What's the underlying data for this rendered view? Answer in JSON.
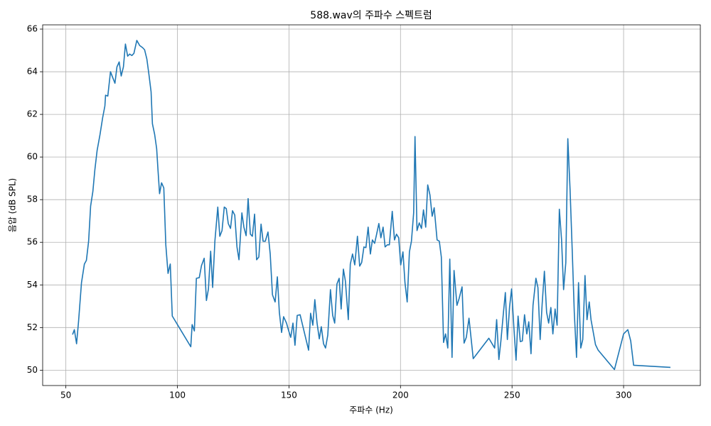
{
  "chart_data": {
    "type": "line",
    "title": "588.wav의 주파수 스펙트럼",
    "xlabel": "주파수 (Hz)",
    "ylabel": "음압 (dB SPL)",
    "color": "#1f77b4",
    "grid": true,
    "xlim": [
      39.6,
      334.4
    ],
    "ylim": [
      49.28,
      66.2
    ],
    "xticks": [
      50,
      100,
      150,
      200,
      250,
      300
    ],
    "yticks": [
      50,
      52,
      54,
      56,
      58,
      60,
      62,
      64,
      66
    ],
    "x": [
      53.0,
      53.8,
      54.8,
      55.7,
      57.0,
      58.3,
      59.2,
      60.2,
      61.1,
      62.1,
      63.0,
      64.0,
      65.3,
      66.5,
      67.5,
      67.8,
      68.8,
      70.0,
      71.0,
      72.0,
      72.9,
      73.9,
      74.8,
      75.8,
      76.7,
      77.7,
      78.6,
      79.6,
      80.5,
      81.8,
      83.1,
      84.4,
      85.3,
      86.3,
      87.2,
      88.2,
      88.8,
      89.8,
      90.7,
      91.3,
      92.0,
      92.9,
      93.9,
      94.8,
      95.8,
      96.8,
      97.7,
      106.0,
      106.6,
      107.6,
      108.5,
      109.8,
      110.8,
      112.0,
      113.0,
      113.9,
      114.9,
      115.8,
      116.8,
      118.1,
      119.0,
      120.0,
      121.0,
      121.9,
      122.8,
      123.8,
      124.7,
      125.7,
      126.7,
      127.6,
      128.9,
      129.8,
      130.8,
      131.7,
      132.7,
      133.6,
      134.6,
      135.5,
      136.5,
      137.5,
      138.4,
      139.4,
      140.6,
      141.6,
      142.6,
      143.8,
      144.8,
      145.7,
      146.7,
      147.6,
      148.9,
      149.9,
      150.8,
      151.8,
      152.7,
      153.7,
      155.0,
      158.8,
      159.7,
      160.7,
      161.6,
      162.6,
      163.6,
      164.5,
      165.5,
      166.4,
      167.4,
      168.6,
      169.6,
      170.5,
      171.5,
      172.5,
      173.4,
      174.4,
      175.3,
      176.6,
      177.5,
      178.5,
      179.5,
      180.7,
      181.7,
      182.6,
      183.6,
      184.5,
      185.5,
      186.5,
      187.4,
      188.4,
      189.3,
      190.3,
      191.2,
      192.2,
      193.1,
      194.1,
      195.0,
      196.3,
      197.3,
      198.2,
      199.2,
      200.1,
      201.1,
      202.0,
      203.0,
      204.0,
      204.9,
      205.9,
      206.5,
      207.4,
      208.4,
      209.4,
      210.3,
      211.3,
      212.2,
      213.2,
      214.2,
      215.1,
      216.4,
      217.4,
      218.3,
      219.3,
      220.2,
      221.2,
      222.1,
      223.1,
      224.0,
      225.3,
      226.3,
      227.6,
      228.5,
      229.5,
      230.7,
      232.6,
      239.6,
      242.2,
      243.1,
      244.1,
      245.0,
      246.0,
      247.0,
      247.9,
      248.9,
      249.8,
      250.8,
      251.8,
      252.7,
      253.7,
      254.6,
      255.6,
      256.6,
      257.5,
      258.5,
      259.4,
      260.7,
      261.6,
      262.6,
      263.5,
      264.5,
      265.5,
      266.4,
      267.4,
      268.3,
      269.3,
      270.2,
      271.2,
      272.2,
      273.1,
      274.1,
      275.0,
      276.0,
      277.0,
      277.9,
      278.9,
      279.8,
      280.8,
      281.7,
      282.7,
      283.6,
      284.6,
      285.4,
      287.4,
      288.6,
      295.9,
      300.0,
      301.9,
      303.2,
      304.5,
      321.0
    ],
    "values": [
      51.67,
      51.9,
      51.24,
      52.3,
      54.1,
      54.98,
      55.15,
      56.05,
      57.7,
      58.38,
      59.4,
      60.3,
      61.05,
      61.85,
      62.4,
      62.9,
      62.86,
      64.0,
      63.73,
      63.46,
      64.23,
      64.46,
      63.8,
      64.23,
      65.3,
      64.73,
      64.83,
      64.76,
      64.86,
      65.47,
      65.23,
      65.13,
      65.03,
      64.6,
      63.9,
      63.06,
      61.56,
      61.06,
      60.39,
      59.39,
      58.28,
      58.79,
      58.55,
      55.88,
      54.54,
      54.98,
      52.54,
      51.1,
      52.14,
      51.84,
      54.31,
      54.34,
      54.91,
      55.25,
      53.27,
      53.8,
      55.58,
      53.88,
      56.05,
      57.65,
      56.28,
      56.55,
      57.65,
      57.58,
      56.88,
      56.65,
      57.48,
      57.28,
      55.78,
      55.18,
      57.38,
      56.71,
      56.31,
      58.05,
      56.38,
      56.28,
      57.32,
      55.18,
      55.31,
      56.85,
      56.05,
      56.05,
      56.48,
      55.45,
      53.54,
      53.2,
      54.38,
      52.71,
      51.77,
      52.51,
      52.21,
      51.84,
      51.54,
      52.21,
      51.17,
      52.57,
      52.6,
      50.94,
      52.67,
      52.11,
      53.31,
      52.21,
      51.47,
      52.04,
      51.24,
      51.04,
      51.64,
      53.78,
      52.57,
      52.21,
      54.04,
      54.31,
      52.87,
      54.74,
      54.18,
      52.37,
      54.98,
      55.45,
      54.94,
      56.28,
      54.88,
      55.05,
      55.78,
      55.75,
      56.71,
      55.45,
      56.11,
      55.95,
      56.38,
      56.88,
      56.21,
      56.71,
      55.78,
      55.88,
      55.88,
      57.45,
      56.11,
      56.38,
      56.21,
      54.94,
      55.55,
      54.11,
      53.2,
      55.55,
      56.05,
      57.38,
      60.96,
      56.55,
      56.91,
      56.65,
      57.52,
      56.71,
      58.69,
      58.22,
      57.22,
      57.62,
      56.11,
      56.05,
      55.31,
      51.3,
      51.7,
      51.04,
      55.21,
      50.6,
      54.68,
      53.04,
      53.37,
      53.91,
      51.27,
      51.54,
      52.44,
      50.54,
      51.5,
      51.04,
      52.37,
      50.5,
      51.37,
      52.54,
      53.64,
      51.44,
      52.97,
      53.81,
      52.04,
      50.47,
      52.54,
      51.34,
      51.37,
      52.6,
      51.7,
      52.27,
      50.77,
      53.04,
      54.31,
      53.88,
      51.44,
      53.11,
      54.64,
      52.71,
      52.21,
      52.94,
      51.7,
      52.87,
      52.11,
      57.55,
      56.11,
      53.78,
      55.05,
      60.86,
      58.49,
      55.55,
      52.71,
      50.6,
      54.11,
      51.04,
      51.44,
      54.44,
      52.37,
      53.2,
      52.37,
      51.2,
      50.94,
      50.03,
      51.7,
      51.9,
      51.37,
      50.23,
      50.13
    ]
  }
}
